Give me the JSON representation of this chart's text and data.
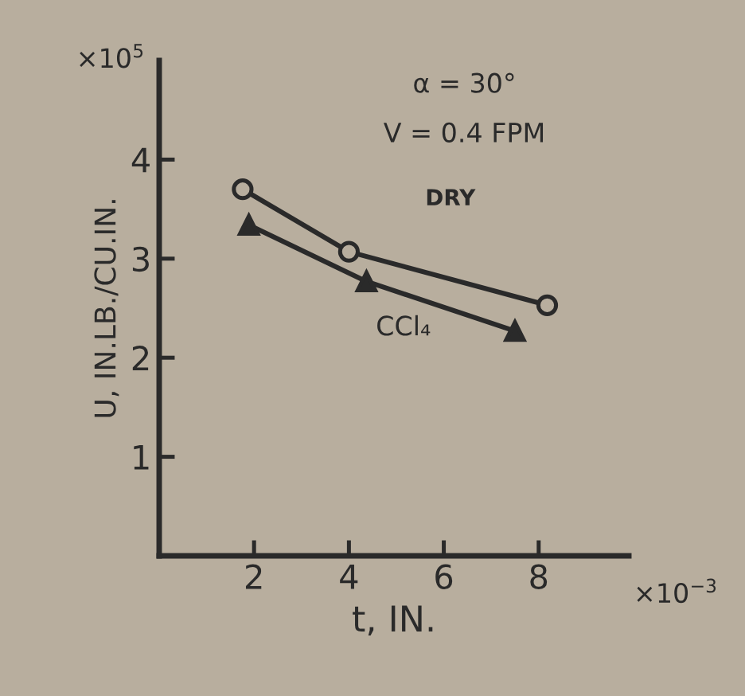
{
  "chart_data": {
    "type": "line",
    "xlabel": "t, IN.",
    "ylabel": "U, IN.LB./CU.IN.",
    "xlim": [
      0,
      9.9
    ],
    "ylim": [
      0,
      5
    ],
    "xticks": [
      2,
      4,
      6,
      8
    ],
    "yticks": [
      1,
      2,
      3,
      4
    ],
    "grid": false,
    "legend": false,
    "line_style": "solid",
    "annotations": [
      "×10$^{5}$",
      "×10$^{−3}$",
      "α = 30°",
      "V = 0.4 FPM"
    ],
    "series": [
      {
        "name": "DRY",
        "color": "#2a2a2a",
        "marker": "circle",
        "x": [
          1.76,
          4.0,
          8.18
        ],
        "values": [
          3.7,
          3.07,
          2.53
        ]
      },
      {
        "name": "CCl₄",
        "color": "#2a2a2a",
        "marker": "triangle",
        "x": [
          1.89,
          4.37,
          7.5
        ],
        "values": [
          3.34,
          2.77,
          2.27
        ]
      }
    ]
  }
}
